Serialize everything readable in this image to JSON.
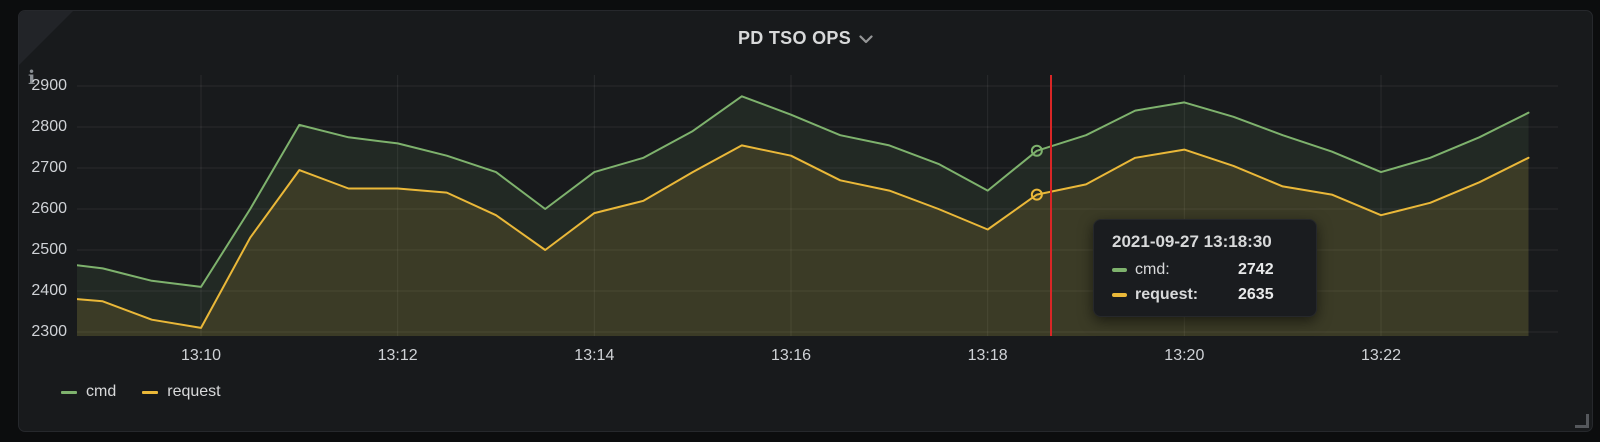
{
  "panel": {
    "title": "PD TSO OPS",
    "info_icon_glyph": "i",
    "background": "#181a1c",
    "page_background": "#0c0d0e",
    "text_color": "#d8d9da"
  },
  "legend": {
    "items": [
      {
        "label": "cmd",
        "color": "#7eb26d"
      },
      {
        "label": "request",
        "color": "#eab839"
      }
    ]
  },
  "tooltip": {
    "timestamp": "2021-09-27 13:18:30",
    "rows": [
      {
        "label": "cmd:",
        "value": "2742",
        "color": "#7eb26d",
        "emphasis": false
      },
      {
        "label": "request:",
        "value": "2635",
        "color": "#eab839",
        "emphasis": true
      }
    ]
  },
  "chart_data": {
    "type": "line",
    "title": "PD TSO OPS",
    "x": [
      "13:08:30",
      "13:09:00",
      "13:09:30",
      "13:10:00",
      "13:10:30",
      "13:11:00",
      "13:11:30",
      "13:12:00",
      "13:12:30",
      "13:13:00",
      "13:13:30",
      "13:14:00",
      "13:14:30",
      "13:15:00",
      "13:15:30",
      "13:16:00",
      "13:16:30",
      "13:17:00",
      "13:17:30",
      "13:18:00",
      "13:18:30",
      "13:19:00",
      "13:19:30",
      "13:20:00",
      "13:20:30",
      "13:21:00",
      "13:21:30",
      "13:22:00",
      "13:22:30",
      "13:23:00",
      "13:23:30"
    ],
    "series": [
      {
        "name": "cmd",
        "color": "#7eb26d",
        "fill": "rgba(126,178,109,0.10)",
        "values": [
          2470,
          2455,
          2425,
          2410,
          2600,
          2805,
          2775,
          2760,
          2730,
          2690,
          2600,
          2690,
          2725,
          2790,
          2875,
          2830,
          2780,
          2755,
          2710,
          2645,
          2742,
          2780,
          2840,
          2860,
          2825,
          2780,
          2740,
          2690,
          2725,
          2775,
          2835
        ]
      },
      {
        "name": "request",
        "color": "#eab839",
        "fill": "rgba(234,184,57,0.13)",
        "values": [
          2385,
          2375,
          2330,
          2310,
          2530,
          2695,
          2650,
          2650,
          2640,
          2585,
          2500,
          2590,
          2620,
          2690,
          2755,
          2730,
          2670,
          2645,
          2600,
          2550,
          2635,
          2660,
          2725,
          2745,
          2705,
          2655,
          2635,
          2585,
          2615,
          2665,
          2725
        ]
      }
    ],
    "x_tick_labels": [
      "13:10",
      "13:12",
      "13:14",
      "13:16",
      "13:18",
      "13:20",
      "13:22"
    ],
    "y_tick_labels": [
      2900,
      2800,
      2700,
      2600,
      2500,
      2400,
      2300
    ],
    "ylim": [
      2290,
      2915
    ],
    "grid": true,
    "legend_position": "bottom-left",
    "crosshair": {
      "time": "13:18:30",
      "color": "#d92626"
    },
    "highlighted_point": {
      "time": "13:18:30",
      "cmd": 2742,
      "request": 2635
    }
  }
}
